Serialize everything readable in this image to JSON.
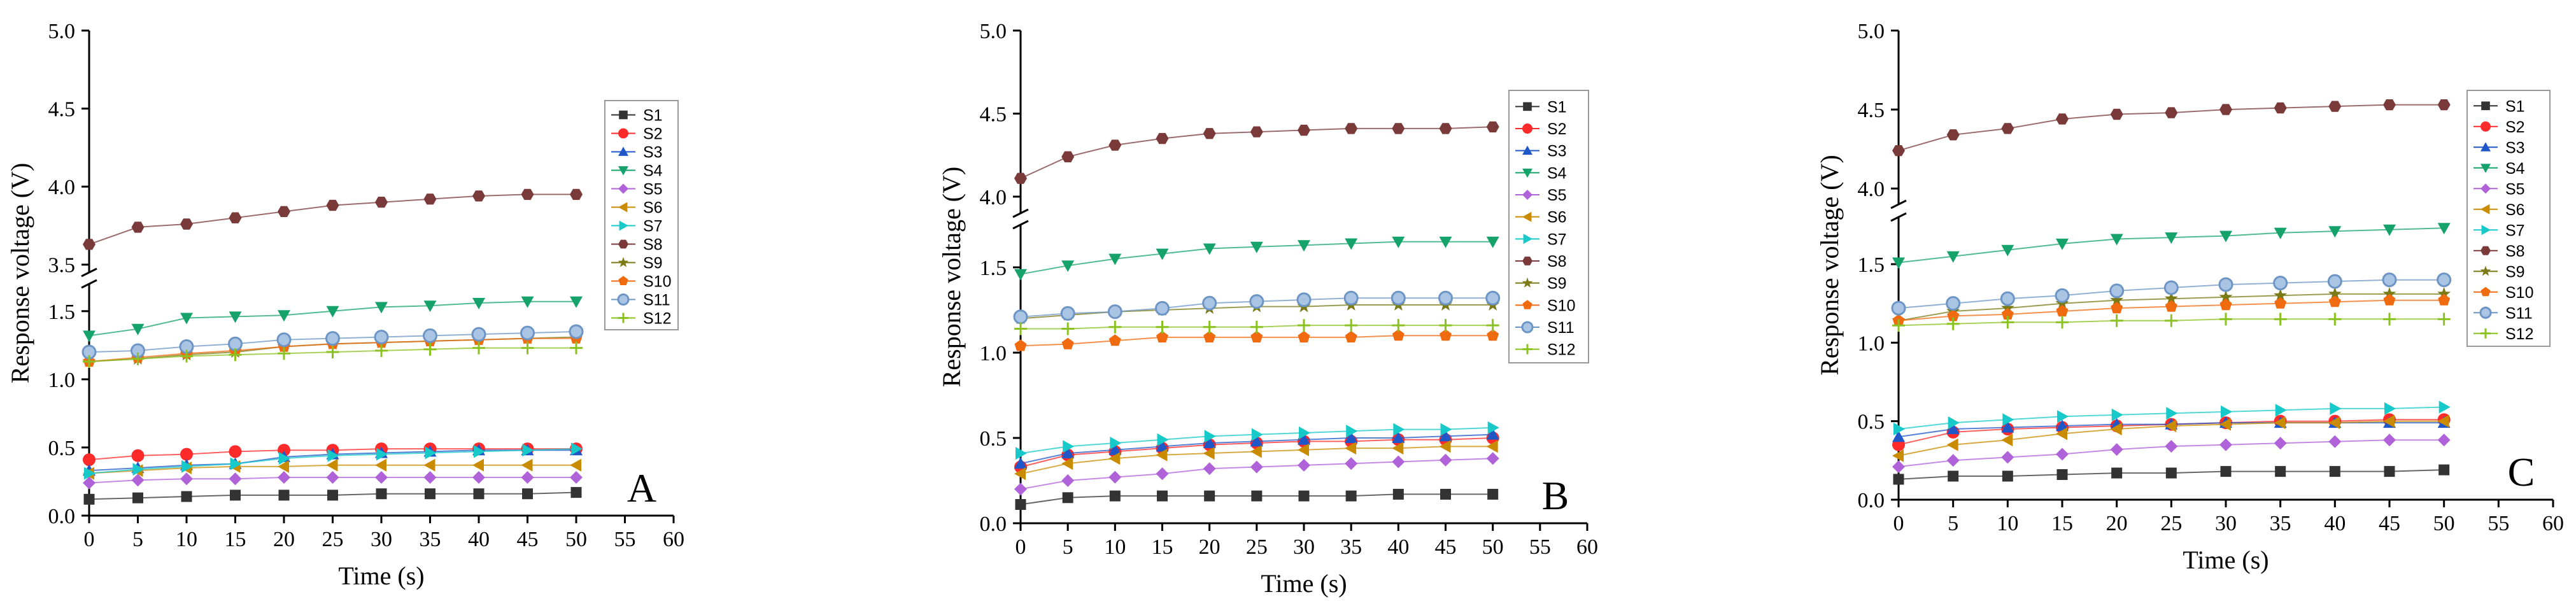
{
  "chart_data": [
    {
      "type": "line",
      "panel_label": "A",
      "xlabel": "Time (s)",
      "ylabel": "Response voltage (V)",
      "xlim": [
        0,
        60
      ],
      "x_ticks": [
        "0",
        "5",
        "10",
        "15",
        "20",
        "25",
        "30",
        "35",
        "40",
        "45",
        "50",
        "55",
        "60"
      ],
      "y_lower_ticks": [
        "0.0",
        "0.5",
        "1.0",
        "1.5"
      ],
      "y_upper_ticks": [
        "3.5",
        "4.0",
        "4.5",
        "5.0"
      ],
      "y_lower_range": [
        0.0,
        1.7
      ],
      "y_upper_range": [
        3.45,
        5.0
      ],
      "x": [
        0,
        5,
        10,
        15,
        20,
        25,
        30,
        35,
        40,
        45,
        50
      ],
      "legend": [
        "S1",
        "S2",
        "S3",
        "S4",
        "S5",
        "S6",
        "S7",
        "S8",
        "S9",
        "S10",
        "S11",
        "S12"
      ],
      "series": [
        {
          "name": "S1",
          "color": "#333333",
          "marker": "square",
          "values": [
            0.12,
            0.13,
            0.14,
            0.15,
            0.15,
            0.15,
            0.16,
            0.16,
            0.16,
            0.16,
            0.17
          ]
        },
        {
          "name": "S2",
          "color": "#ff2a2a",
          "marker": "circle",
          "values": [
            0.41,
            0.44,
            0.45,
            0.47,
            0.48,
            0.48,
            0.49,
            0.49,
            0.49,
            0.49,
            0.49
          ]
        },
        {
          "name": "S3",
          "color": "#1f57c9",
          "marker": "triangle-up",
          "values": [
            0.33,
            0.35,
            0.37,
            0.38,
            0.43,
            0.45,
            0.46,
            0.47,
            0.48,
            0.48,
            0.48
          ]
        },
        {
          "name": "S4",
          "color": "#16a36b",
          "marker": "triangle-down",
          "values": [
            1.32,
            1.37,
            1.45,
            1.46,
            1.47,
            1.5,
            1.53,
            1.54,
            1.56,
            1.57,
            1.57
          ]
        },
        {
          "name": "S5",
          "color": "#b063d9",
          "marker": "diamond",
          "values": [
            0.24,
            0.26,
            0.27,
            0.27,
            0.28,
            0.28,
            0.28,
            0.28,
            0.28,
            0.28,
            0.28
          ]
        },
        {
          "name": "S6",
          "color": "#c98c00",
          "marker": "triangle-left",
          "values": [
            0.31,
            0.33,
            0.35,
            0.36,
            0.36,
            0.37,
            0.37,
            0.37,
            0.37,
            0.37,
            0.37
          ]
        },
        {
          "name": "S7",
          "color": "#18c9c9",
          "marker": "triangle-right",
          "values": [
            0.31,
            0.34,
            0.36,
            0.38,
            0.42,
            0.44,
            0.45,
            0.46,
            0.47,
            0.48,
            0.49
          ]
        },
        {
          "name": "S8",
          "color": "#7a3a3a",
          "marker": "hexagon",
          "values": [
            3.63,
            3.74,
            3.76,
            3.8,
            3.84,
            3.88,
            3.9,
            3.92,
            3.94,
            3.95,
            3.95
          ]
        },
        {
          "name": "S9",
          "color": "#7a7a16",
          "marker": "star",
          "values": [
            1.13,
            1.15,
            1.18,
            1.2,
            1.24,
            1.26,
            1.27,
            1.28,
            1.29,
            1.3,
            1.31
          ]
        },
        {
          "name": "S10",
          "color": "#f06a10",
          "marker": "pentagon",
          "values": [
            1.13,
            1.16,
            1.19,
            1.21,
            1.24,
            1.26,
            1.27,
            1.28,
            1.29,
            1.3,
            1.3
          ]
        },
        {
          "name": "S11",
          "color": "#6c95c6",
          "marker": "circle-ring",
          "values": [
            1.2,
            1.21,
            1.24,
            1.26,
            1.29,
            1.3,
            1.31,
            1.32,
            1.33,
            1.34,
            1.35
          ]
        },
        {
          "name": "S12",
          "color": "#8ac21f",
          "marker": "plus",
          "values": [
            1.13,
            1.15,
            1.17,
            1.18,
            1.19,
            1.2,
            1.21,
            1.22,
            1.23,
            1.23,
            1.23
          ]
        }
      ]
    },
    {
      "type": "line",
      "panel_label": "B",
      "xlabel": "Time (s)",
      "ylabel": "Response voltage (V)",
      "xlim": [
        0,
        60
      ],
      "x_ticks": [
        "0",
        "5",
        "10",
        "15",
        "20",
        "25",
        "30",
        "35",
        "40",
        "45",
        "50",
        "55",
        "60"
      ],
      "y_lower_ticks": [
        "0.0",
        "0.5",
        "1.0",
        "1.5"
      ],
      "y_upper_ticks": [
        "4.0",
        "4.5",
        "5.0"
      ],
      "y_lower_range": [
        0.0,
        1.75
      ],
      "y_upper_range": [
        3.9,
        5.0
      ],
      "x": [
        0,
        5,
        10,
        15,
        20,
        25,
        30,
        35,
        40,
        45,
        50
      ],
      "legend": [
        "S1",
        "S2",
        "S3",
        "S4",
        "S5",
        "S6",
        "S7",
        "S8",
        "S9",
        "S10",
        "S11",
        "S12"
      ],
      "series": [
        {
          "name": "S1",
          "color": "#333333",
          "marker": "square",
          "values": [
            0.11,
            0.15,
            0.16,
            0.16,
            0.16,
            0.16,
            0.16,
            0.16,
            0.17,
            0.17,
            0.17
          ]
        },
        {
          "name": "S2",
          "color": "#ff2a2a",
          "marker": "circle",
          "values": [
            0.33,
            0.4,
            0.42,
            0.44,
            0.46,
            0.47,
            0.48,
            0.48,
            0.49,
            0.49,
            0.5
          ]
        },
        {
          "name": "S3",
          "color": "#1f57c9",
          "marker": "triangle-up",
          "values": [
            0.35,
            0.41,
            0.43,
            0.45,
            0.47,
            0.48,
            0.49,
            0.5,
            0.5,
            0.51,
            0.52
          ]
        },
        {
          "name": "S4",
          "color": "#16a36b",
          "marker": "triangle-down",
          "values": [
            1.46,
            1.51,
            1.55,
            1.58,
            1.61,
            1.62,
            1.63,
            1.64,
            1.65,
            1.65,
            1.65
          ]
        },
        {
          "name": "S5",
          "color": "#b063d9",
          "marker": "diamond",
          "values": [
            0.2,
            0.25,
            0.27,
            0.29,
            0.32,
            0.33,
            0.34,
            0.35,
            0.36,
            0.37,
            0.38
          ]
        },
        {
          "name": "S6",
          "color": "#c98c00",
          "marker": "triangle-left",
          "values": [
            0.29,
            0.35,
            0.38,
            0.4,
            0.41,
            0.42,
            0.43,
            0.44,
            0.44,
            0.45,
            0.45
          ]
        },
        {
          "name": "S7",
          "color": "#18c9c9",
          "marker": "triangle-right",
          "values": [
            0.41,
            0.45,
            0.47,
            0.49,
            0.51,
            0.52,
            0.53,
            0.54,
            0.55,
            0.55,
            0.56
          ]
        },
        {
          "name": "S8",
          "color": "#7a3a3a",
          "marker": "hexagon",
          "values": [
            4.11,
            4.24,
            4.31,
            4.35,
            4.38,
            4.39,
            4.4,
            4.41,
            4.41,
            4.41,
            4.42
          ]
        },
        {
          "name": "S9",
          "color": "#7a7a16",
          "marker": "star",
          "values": [
            1.2,
            1.22,
            1.24,
            1.25,
            1.26,
            1.27,
            1.27,
            1.28,
            1.28,
            1.28,
            1.28
          ]
        },
        {
          "name": "S10",
          "color": "#f06a10",
          "marker": "pentagon",
          "values": [
            1.04,
            1.05,
            1.07,
            1.09,
            1.09,
            1.09,
            1.09,
            1.09,
            1.1,
            1.1,
            1.1
          ]
        },
        {
          "name": "S11",
          "color": "#6c95c6",
          "marker": "circle-ring",
          "values": [
            1.21,
            1.23,
            1.24,
            1.26,
            1.29,
            1.3,
            1.31,
            1.32,
            1.32,
            1.32,
            1.32
          ]
        },
        {
          "name": "S12",
          "color": "#8ac21f",
          "marker": "plus",
          "values": [
            1.14,
            1.14,
            1.15,
            1.15,
            1.15,
            1.15,
            1.16,
            1.16,
            1.16,
            1.16,
            1.16
          ]
        }
      ]
    },
    {
      "type": "line",
      "panel_label": "C",
      "xlabel": "Time (s)",
      "ylabel": "Response voltage (V)",
      "xlim": [
        0,
        60
      ],
      "x_ticks": [
        "0",
        "5",
        "10",
        "15",
        "20",
        "25",
        "30",
        "35",
        "40",
        "45",
        "50",
        "55",
        "60"
      ],
      "y_lower_ticks": [
        "0.0",
        "0.5",
        "1.0",
        "1.5"
      ],
      "y_upper_ticks": [
        "4.0",
        "4.5",
        "5.0"
      ],
      "y_lower_range": [
        0.0,
        1.8
      ],
      "y_upper_range": [
        3.9,
        5.0
      ],
      "x": [
        0,
        5,
        10,
        15,
        20,
        25,
        30,
        35,
        40,
        45,
        50
      ],
      "legend": [
        "S1",
        "S2",
        "S3",
        "S4",
        "S5",
        "S6",
        "S7",
        "S8",
        "S9",
        "S10",
        "S11",
        "S12"
      ],
      "series": [
        {
          "name": "S1",
          "color": "#333333",
          "marker": "square",
          "values": [
            0.13,
            0.15,
            0.15,
            0.16,
            0.17,
            0.17,
            0.18,
            0.18,
            0.18,
            0.18,
            0.19
          ]
        },
        {
          "name": "S2",
          "color": "#ff2a2a",
          "marker": "circle",
          "values": [
            0.35,
            0.43,
            0.45,
            0.46,
            0.47,
            0.48,
            0.49,
            0.5,
            0.5,
            0.51,
            0.51
          ]
        },
        {
          "name": "S3",
          "color": "#1f57c9",
          "marker": "triangle-up",
          "values": [
            0.4,
            0.45,
            0.46,
            0.47,
            0.48,
            0.48,
            0.49,
            0.49,
            0.49,
            0.49,
            0.49
          ]
        },
        {
          "name": "S4",
          "color": "#16a36b",
          "marker": "triangle-down",
          "values": [
            1.51,
            1.55,
            1.59,
            1.63,
            1.66,
            1.67,
            1.68,
            1.7,
            1.71,
            1.72,
            1.73
          ]
        },
        {
          "name": "S5",
          "color": "#b063d9",
          "marker": "diamond",
          "values": [
            0.21,
            0.25,
            0.27,
            0.29,
            0.32,
            0.34,
            0.35,
            0.36,
            0.37,
            0.38,
            0.38
          ]
        },
        {
          "name": "S6",
          "color": "#c98c00",
          "marker": "triangle-left",
          "values": [
            0.28,
            0.35,
            0.38,
            0.42,
            0.45,
            0.47,
            0.48,
            0.49,
            0.49,
            0.5,
            0.5
          ]
        },
        {
          "name": "S7",
          "color": "#18c9c9",
          "marker": "triangle-right",
          "values": [
            0.45,
            0.49,
            0.51,
            0.53,
            0.54,
            0.55,
            0.56,
            0.57,
            0.58,
            0.58,
            0.59
          ]
        },
        {
          "name": "S8",
          "color": "#7a3a3a",
          "marker": "hexagon",
          "values": [
            4.24,
            4.34,
            4.38,
            4.44,
            4.47,
            4.48,
            4.5,
            4.51,
            4.52,
            4.53,
            4.53
          ]
        },
        {
          "name": "S9",
          "color": "#7a7a16",
          "marker": "star",
          "values": [
            1.14,
            1.2,
            1.22,
            1.25,
            1.27,
            1.28,
            1.29,
            1.3,
            1.31,
            1.31,
            1.31
          ]
        },
        {
          "name": "S10",
          "color": "#f06a10",
          "marker": "pentagon",
          "values": [
            1.14,
            1.17,
            1.18,
            1.2,
            1.22,
            1.23,
            1.24,
            1.25,
            1.26,
            1.27,
            1.27
          ]
        },
        {
          "name": "S11",
          "color": "#6c95c6",
          "marker": "circle-ring",
          "values": [
            1.22,
            1.25,
            1.28,
            1.3,
            1.33,
            1.35,
            1.37,
            1.38,
            1.39,
            1.4,
            1.4
          ]
        },
        {
          "name": "S12",
          "color": "#8ac21f",
          "marker": "plus",
          "values": [
            1.11,
            1.12,
            1.13,
            1.13,
            1.14,
            1.14,
            1.15,
            1.15,
            1.15,
            1.15,
            1.15
          ]
        }
      ]
    }
  ]
}
